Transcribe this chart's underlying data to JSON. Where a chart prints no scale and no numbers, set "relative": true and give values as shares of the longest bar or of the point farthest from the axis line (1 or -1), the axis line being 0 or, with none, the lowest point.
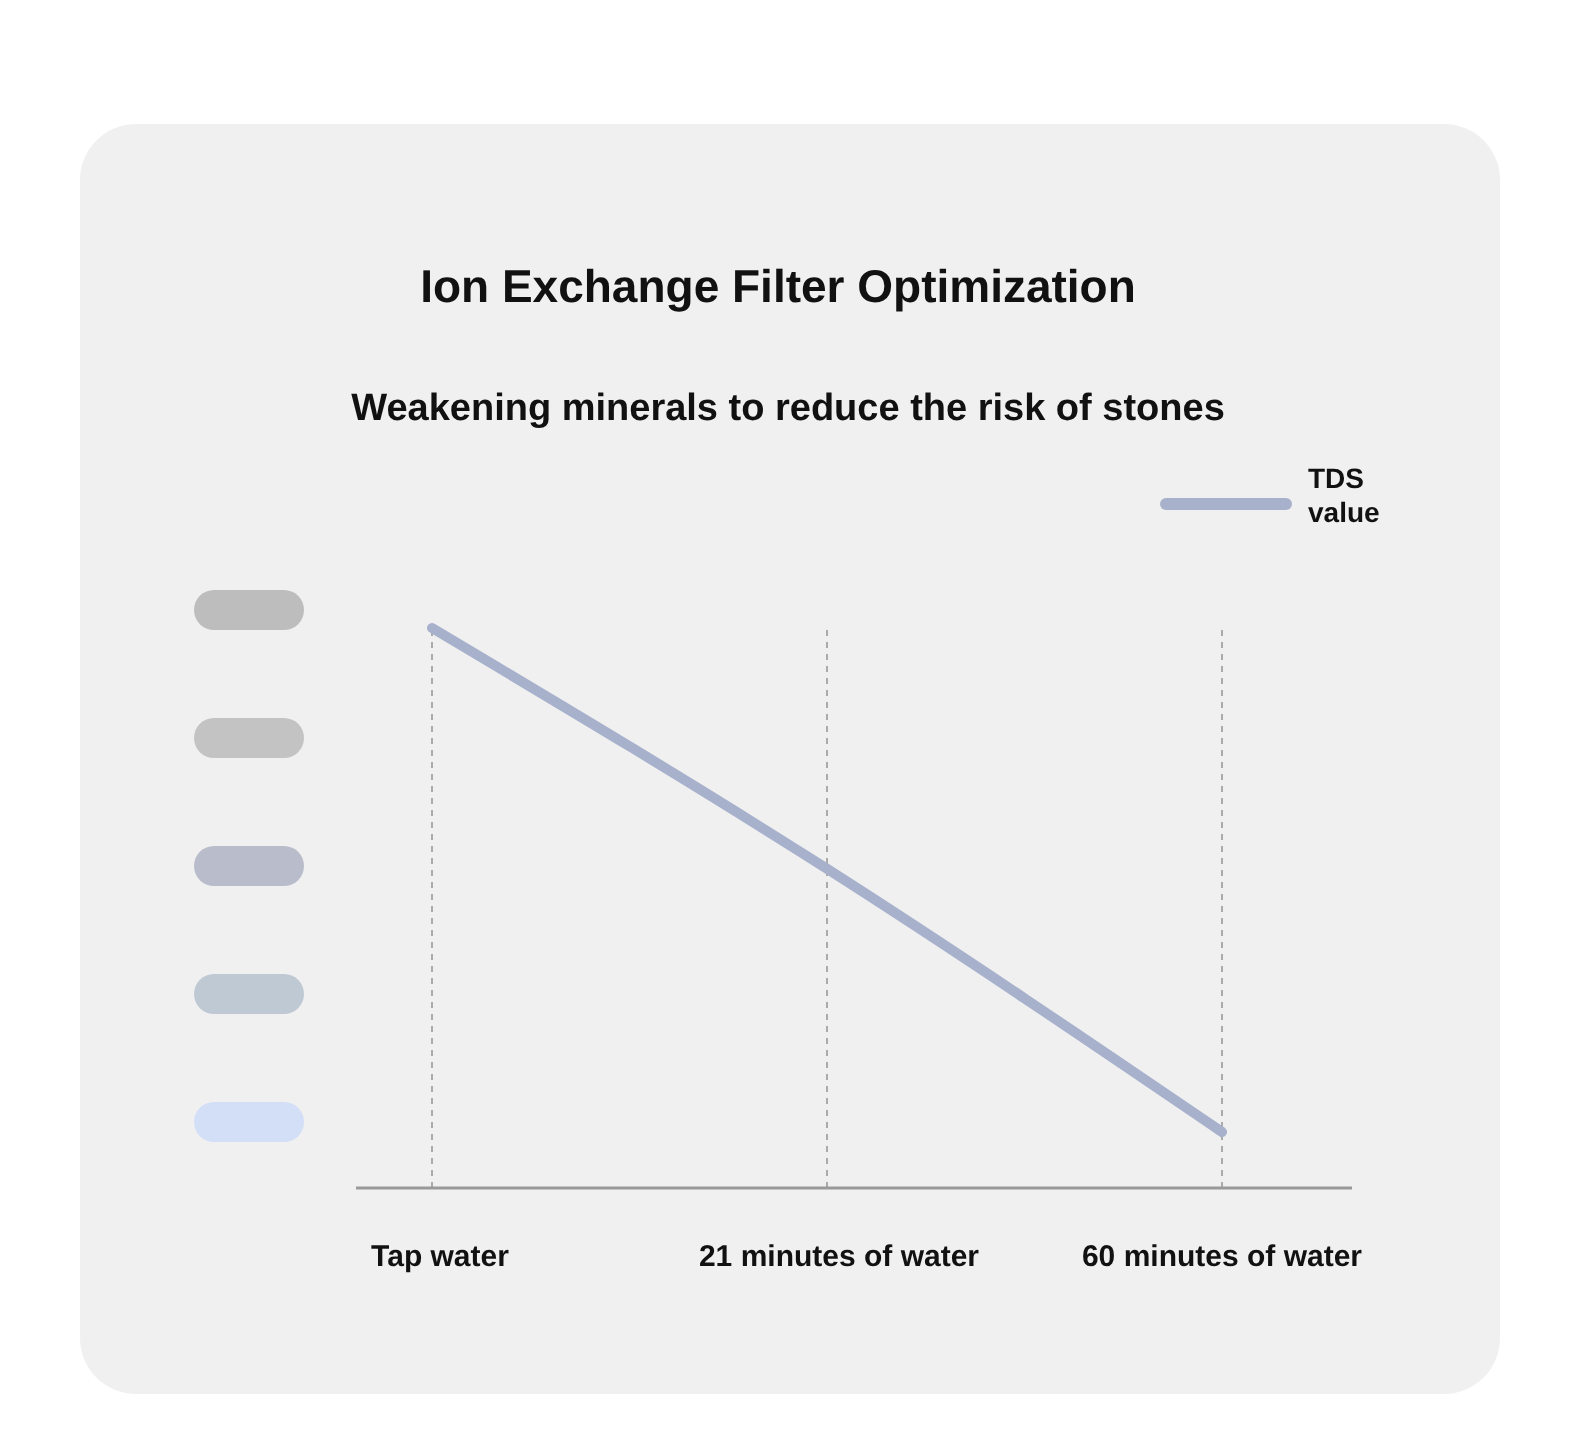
{
  "chart_data": {
    "type": "line",
    "title": "Ion Exchange Filter Optimization",
    "subtitle": "Weakening minerals to reduce the risk of stones",
    "relative": true,
    "categories": [
      "Tap water",
      "21 minutes of water",
      "60 minutes of water"
    ],
    "series": [
      {
        "name": "TDS value",
        "color": "#a7b1cc",
        "values": [
          1,
          0.57,
          0.1
        ]
      }
    ],
    "grid": "x",
    "legend": "top right",
    "marker": "none",
    "line_style": "solid"
  }
}
